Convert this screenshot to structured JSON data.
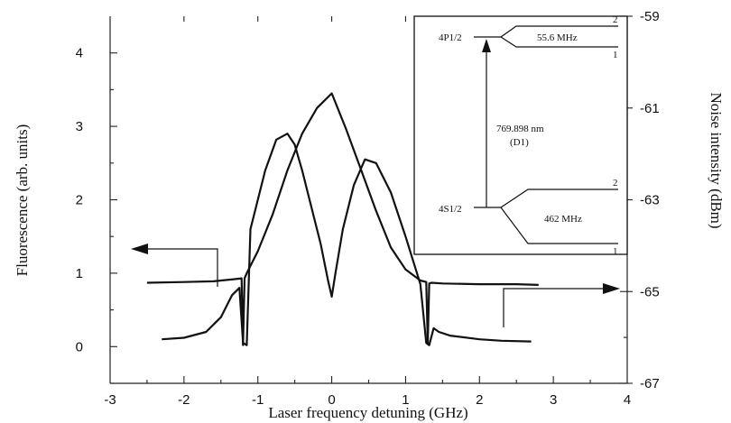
{
  "chart_data": {
    "type": "line",
    "xlabel": "Laser frequency detuning (GHz)",
    "ylabel_left": "Fluorescence (arb. units)",
    "ylabel_right": "Noise intensity (dBm)",
    "xlim": [
      -3,
      4
    ],
    "ylim_left": [
      -0.5,
      4.5
    ],
    "ylim_right": [
      -67,
      -59
    ],
    "x_ticks": [
      "-3",
      "-2",
      "-1",
      "0",
      "1",
      "2",
      "3",
      "4"
    ],
    "y_left_ticks": [
      "0",
      "1",
      "2",
      "3",
      "4"
    ],
    "y_right_ticks": [
      "-59",
      "-61",
      "-63",
      "-65",
      "-67"
    ],
    "series": [
      {
        "axis": "left",
        "x": [
          -2.5,
          -2.0,
          -1.6,
          -1.3,
          -1.22,
          -1.2,
          -1.18,
          -1.15,
          -1.0,
          -0.8,
          -0.6,
          -0.4,
          -0.2,
          0.0,
          0.2,
          0.4,
          0.6,
          0.8,
          1.0,
          1.2,
          1.28,
          1.3,
          1.32,
          1.35,
          1.5,
          2.0,
          2.5,
          2.8
        ],
        "y": [
          0.87,
          0.88,
          0.89,
          0.92,
          0.93,
          0.02,
          0.93,
          1.0,
          1.3,
          1.8,
          2.4,
          2.9,
          3.25,
          3.45,
          2.95,
          2.4,
          1.85,
          1.35,
          1.05,
          0.9,
          0.88,
          0.05,
          0.86,
          0.87,
          0.86,
          0.85,
          0.85,
          0.84
        ]
      },
      {
        "axis": "left",
        "x": [
          -2.3,
          -2.0,
          -1.7,
          -1.5,
          -1.35,
          -1.25,
          -1.2,
          -1.15,
          -1.1,
          -0.9,
          -0.75,
          -0.6,
          -0.5,
          -0.4,
          -0.3,
          -0.15,
          -0.05,
          0.0,
          0.05,
          0.15,
          0.3,
          0.45,
          0.6,
          0.8,
          1.0,
          1.2,
          1.28,
          1.32,
          1.38,
          1.45,
          1.6,
          2.0,
          2.3,
          2.7
        ],
        "y": [
          0.1,
          0.12,
          0.2,
          0.4,
          0.7,
          0.8,
          0.05,
          0.02,
          1.6,
          2.4,
          2.82,
          2.9,
          2.75,
          2.4,
          2.0,
          1.4,
          0.9,
          0.68,
          1.0,
          1.6,
          2.2,
          2.55,
          2.5,
          2.1,
          1.5,
          0.85,
          0.05,
          0.02,
          0.25,
          0.2,
          0.15,
          0.1,
          0.08,
          0.07
        ]
      }
    ],
    "annotations": [
      {
        "text": "",
        "points_to": "left axis",
        "from": [
          -1.5,
          0.9
        ],
        "to": [
          -2.7,
          1.8
        ]
      },
      {
        "text": "",
        "points_to": "right axis",
        "from": [
          2.25,
          0.2
        ],
        "to": [
          3.6,
          0.73
        ]
      }
    ]
  },
  "inset": {
    "upper_level": "4P1/2",
    "upper_splitting": "55.6 MHz",
    "lower_level": "4S1/2",
    "lower_splitting": "462 MHz",
    "transition": "769.898 nm",
    "transition_line": "(D1)",
    "upper_f2": "2",
    "upper_f1": "1",
    "lower_f2": "2",
    "lower_f1": "1"
  }
}
